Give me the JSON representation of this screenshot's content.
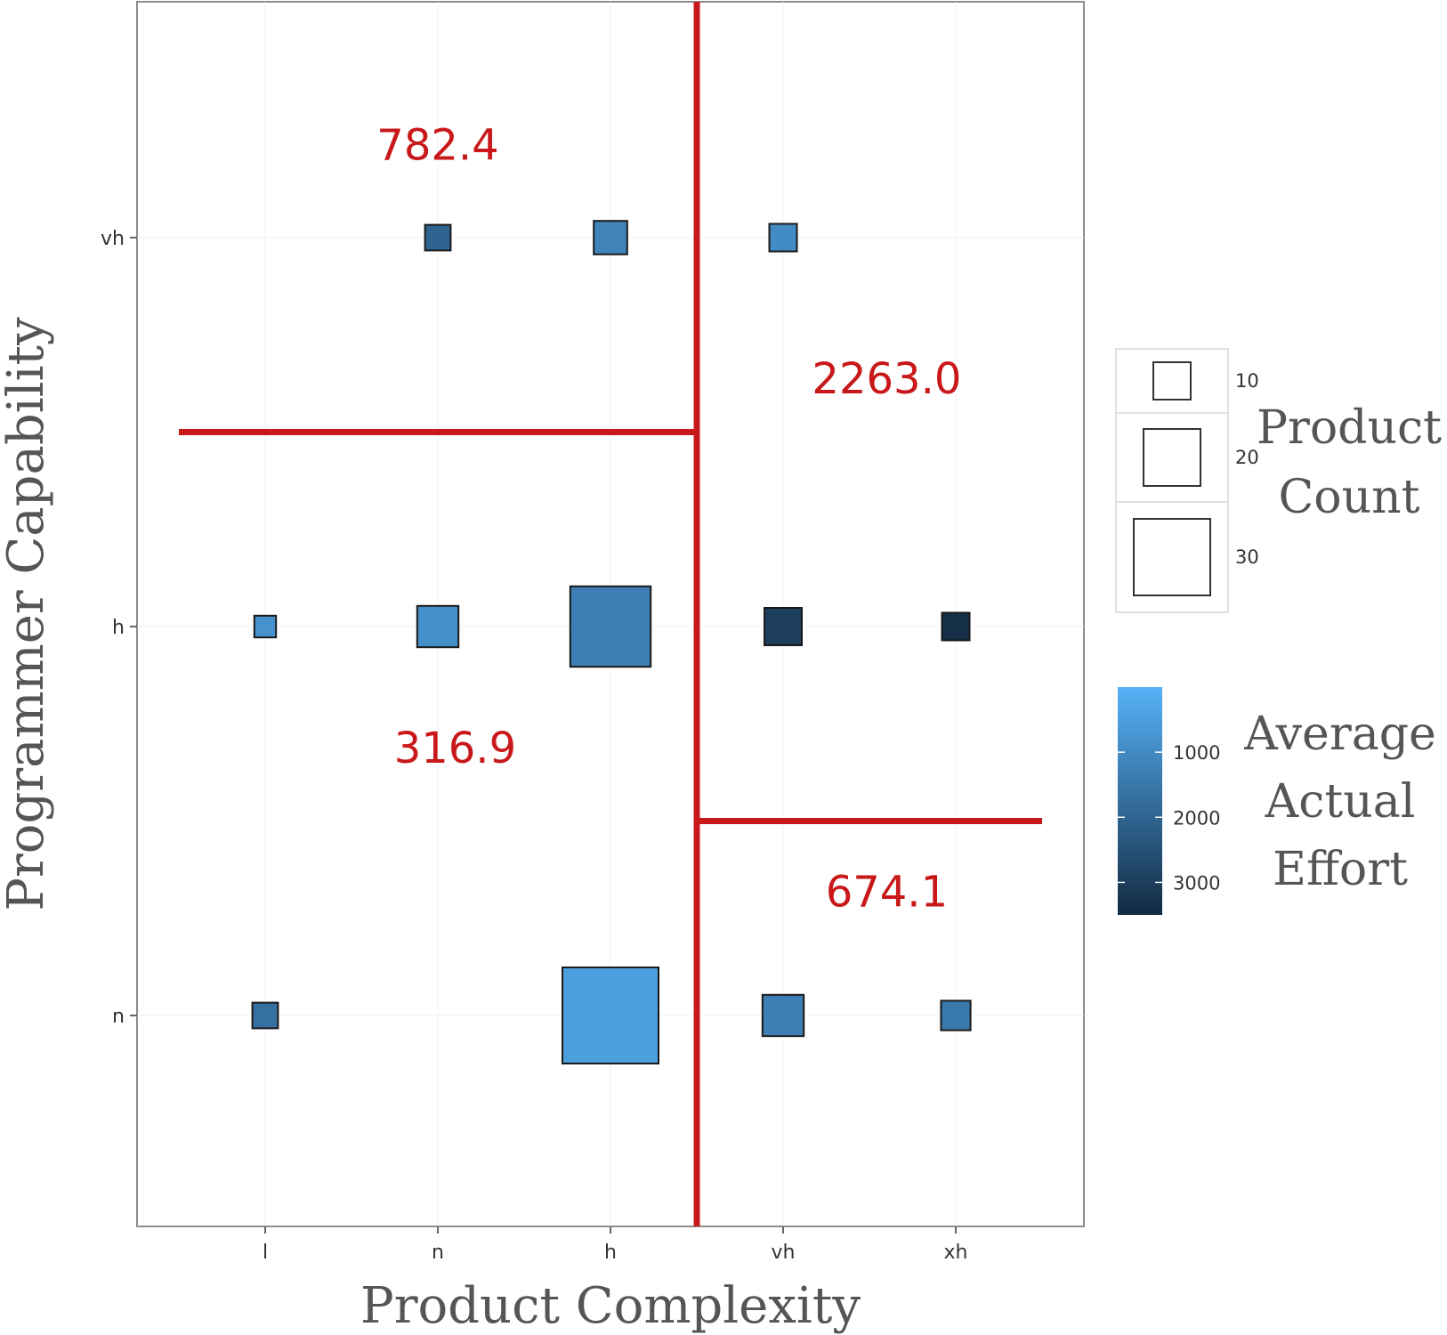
{
  "chart_data": {
    "type": "scatter",
    "xlabel": "Product Complexity",
    "ylabel": "Programmer Capability",
    "x_categories": [
      "l",
      "n",
      "h",
      "vh",
      "xh"
    ],
    "y_categories": [
      "n",
      "h",
      "vh"
    ],
    "grid": false,
    "points": [
      {
        "x": "n",
        "y": "vh",
        "count": 4,
        "effort": 2000
      },
      {
        "x": "h",
        "y": "vh",
        "count": 8,
        "effort": 1200
      },
      {
        "x": "vh",
        "y": "vh",
        "count": 5,
        "effort": 1000
      },
      {
        "x": "l",
        "y": "h",
        "count": 2,
        "effort": 800
      },
      {
        "x": "n",
        "y": "h",
        "count": 12,
        "effort": 900
      },
      {
        "x": "h",
        "y": "h",
        "count": 32,
        "effort": 1300
      },
      {
        "x": "vh",
        "y": "h",
        "count": 10,
        "effort": 3000
      },
      {
        "x": "xh",
        "y": "h",
        "count": 5,
        "effort": 3400
      },
      {
        "x": "l",
        "y": "n",
        "count": 4,
        "effort": 1700
      },
      {
        "x": "h",
        "y": "n",
        "count": 40,
        "effort": 500
      },
      {
        "x": "vh",
        "y": "n",
        "count": 12,
        "effort": 1300
      },
      {
        "x": "xh",
        "y": "n",
        "count": 6,
        "effort": 1500
      }
    ],
    "split_lines": [
      {
        "orientation": "vertical",
        "at_x": 3.5,
        "y_from": 0.5,
        "y_to": 3.5
      },
      {
        "orientation": "horizontal",
        "at_y": 2.5,
        "x_from": 0.5,
        "x_to": 3.5
      },
      {
        "orientation": "horizontal",
        "at_y": 1.5,
        "x_from": 3.5,
        "x_to": 5.5
      }
    ],
    "region_labels": [
      {
        "text": "782.4",
        "x": 2.0,
        "y": 3.2
      },
      {
        "text": "2263.0",
        "x": 4.6,
        "y": 2.6
      },
      {
        "text": "316.9",
        "x": 2.1,
        "y": 1.65
      },
      {
        "text": "674.1",
        "x": 4.6,
        "y": 1.28
      }
    ],
    "legend_size": {
      "title_lines": [
        "Product",
        "Count"
      ],
      "entries": [
        {
          "label": "10",
          "count": 10
        },
        {
          "label": "20",
          "count": 20
        },
        {
          "label": "30",
          "count": 30
        }
      ]
    },
    "legend_color": {
      "title_lines": [
        "Average",
        "Actual",
        "Effort"
      ],
      "ticks": [
        {
          "label": "1000",
          "value": 1000
        },
        {
          "label": "2000",
          "value": 2000
        },
        {
          "label": "3000",
          "value": 3000
        }
      ],
      "range": [
        0,
        3500
      ],
      "low_color": "#56b1f7",
      "high_color": "#132b43"
    },
    "split_color": "#c8181a"
  }
}
